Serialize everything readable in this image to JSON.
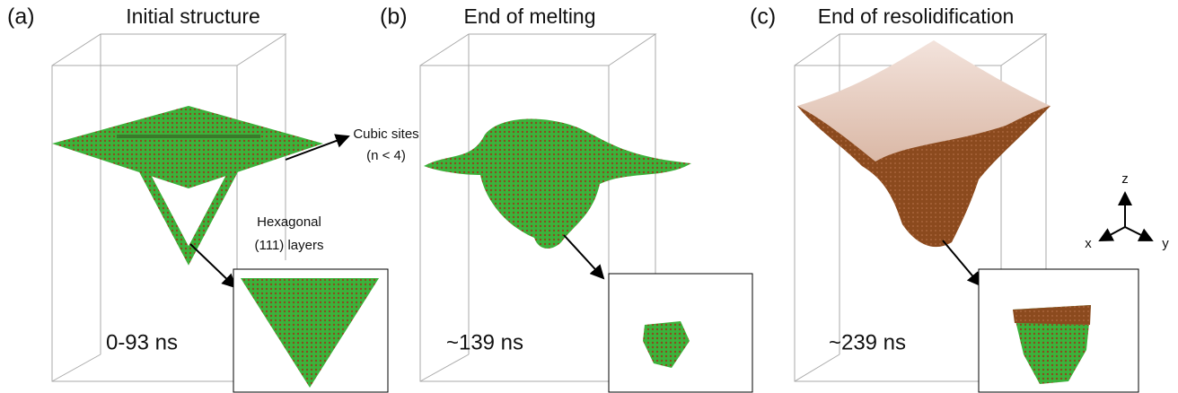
{
  "panels": [
    {
      "label": "(a)",
      "title": "Initial structure",
      "time": "0-93 ns"
    },
    {
      "label": "(b)",
      "title": "End of melting",
      "time": "~139 ns"
    },
    {
      "label": "(c)",
      "title": "End of resolidification",
      "time": "~239 ns"
    }
  ],
  "annotations": {
    "cubic_sites": [
      "Cubic sites",
      "(n < 4)"
    ],
    "hexagonal": [
      "Hexagonal",
      "(111) layers"
    ]
  },
  "axes": {
    "z": "z",
    "x": "x",
    "y": "y"
  }
}
